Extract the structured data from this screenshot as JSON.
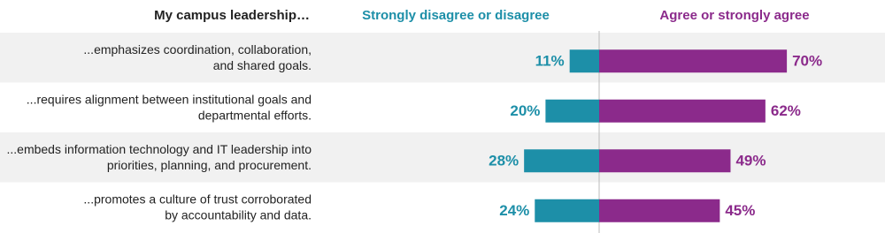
{
  "chart_data": {
    "type": "diverging-bar",
    "category_title": "My campus leadership…",
    "categories": [
      [
        "...emphasizes coordination, collaboration,",
        "and shared goals."
      ],
      [
        "...requires alignment between institutional goals and",
        "departmental efforts."
      ],
      [
        "...embeds information technology and IT leadership into",
        "priorities, planning, and procurement."
      ],
      [
        "...promotes a culture of trust corroborated",
        "by accountability and data."
      ]
    ],
    "series": [
      {
        "name": "Strongly disagree or disagree",
        "color": "#1d8fa8",
        "values": [
          11,
          20,
          28,
          24
        ],
        "value_labels": [
          "11%",
          "20%",
          "28%",
          "24%"
        ]
      },
      {
        "name": "Agree or strongly agree",
        "color": "#8b2a8b",
        "values": [
          70,
          62,
          49,
          45
        ],
        "value_labels": [
          "70%",
          "62%",
          "49%",
          "45%"
        ]
      }
    ]
  }
}
